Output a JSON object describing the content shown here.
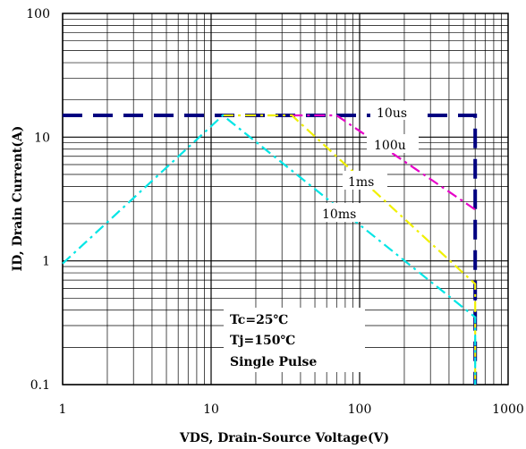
{
  "chart_data": {
    "type": "line",
    "title": "",
    "xlabel": "VDS, Drain-Source Voltage(V)",
    "ylabel": "ID, Drain Current(A)",
    "xscale": "log",
    "yscale": "log",
    "xlim": [
      1,
      1000
    ],
    "ylim": [
      0.1,
      100
    ],
    "grid": true,
    "x_ticks": [
      "1",
      "10",
      "100",
      "1000"
    ],
    "y_ticks": [
      "0.1",
      "1",
      "10",
      "100"
    ],
    "series": [
      {
        "name": "10us",
        "color": "#000080",
        "dash": "long",
        "x": [
          1,
          600,
          600
        ],
        "y": [
          15,
          15,
          0.1
        ]
      },
      {
        "name": "100u",
        "color": "#e600c8",
        "dash": "dashdot",
        "x": [
          35,
          70,
          600
        ],
        "y": [
          15,
          15,
          2.6
        ]
      },
      {
        "name": "1ms",
        "color": "#f0f000",
        "dash": "dashdot",
        "x": [
          12,
          35,
          600,
          600
        ],
        "y": [
          15,
          15,
          0.65,
          0.1
        ]
      },
      {
        "name": "10ms",
        "color": "#00e5e5",
        "dash": "dashdot",
        "x": [
          1,
          12,
          600,
          600
        ],
        "y": [
          0.95,
          15,
          0.35,
          0.1
        ]
      }
    ],
    "annotations": [
      "Tc=25℃",
      "Tj=150℃",
      "Single Pulse"
    ]
  }
}
